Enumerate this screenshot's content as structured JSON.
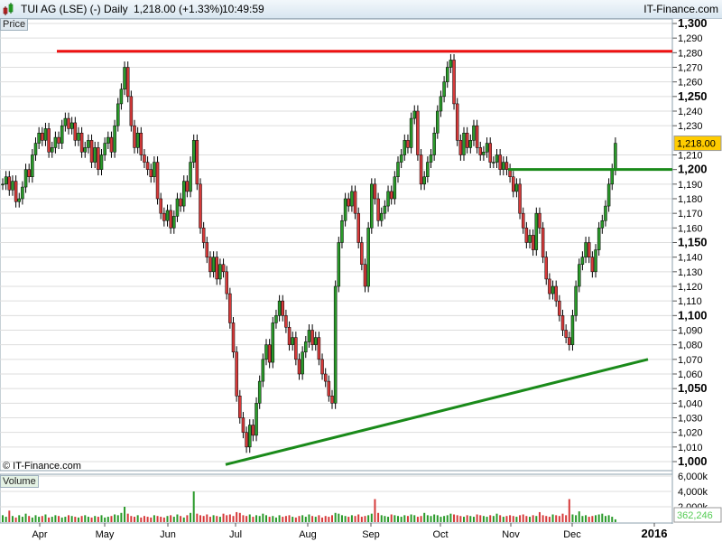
{
  "header": {
    "symbol": "TUI AG (LSE) (-)",
    "interval": "Daily",
    "price": "1,218.00 (+1.33%)",
    "time": "10:49:59",
    "site": "IT-Finance.com"
  },
  "panels": {
    "price_label": "Price",
    "volume_label": "Volume",
    "watermark": "© IT-Finance.com"
  },
  "colors": {
    "up": "#2a9a2a",
    "down": "#d63a3a",
    "resistance": "#ee1111",
    "support": "#1a8a1a",
    "last_price_bg": "#ffcc00"
  },
  "chart_data": [
    {
      "type": "candlestick",
      "title": "TUI AG (LSE) (-)",
      "ylabel": "Price",
      "ylim": [
        1000,
        1300
      ],
      "y_ticks": [
        "1,300",
        "1,290",
        "1,280",
        "1,270",
        "1,260",
        "1,250",
        "1,240",
        "1,230",
        "1,210",
        "1,200",
        "1,190",
        "1,180",
        "1,170",
        "1,160",
        "1,150",
        "1,140",
        "1,130",
        "1,120",
        "1,110",
        "1,100",
        "1,090",
        "1,080",
        "1,070",
        "1,060",
        "1,050",
        "1,040",
        "1,030",
        "1,020",
        "1,010",
        "1,000"
      ],
      "x_ticks": [
        "Apr",
        "May",
        "Jun",
        "Jul",
        "Aug",
        "Sep",
        "Oct",
        "Nov",
        "Dec",
        "2016"
      ],
      "last_price": "1,218.00",
      "closes": [
        1190,
        1195,
        1186,
        1192,
        1178,
        1180,
        1188,
        1200,
        1195,
        1210,
        1218,
        1225,
        1220,
        1228,
        1212,
        1215,
        1222,
        1218,
        1230,
        1235,
        1228,
        1232,
        1220,
        1225,
        1212,
        1215,
        1220,
        1205,
        1215,
        1200,
        1210,
        1218,
        1222,
        1212,
        1230,
        1245,
        1255,
        1270,
        1250,
        1230,
        1215,
        1225,
        1210,
        1205,
        1200,
        1195,
        1205,
        1180,
        1170,
        1165,
        1172,
        1160,
        1168,
        1180,
        1175,
        1192,
        1185,
        1205,
        1220,
        1190,
        1160,
        1150,
        1140,
        1130,
        1140,
        1125,
        1135,
        1130,
        1115,
        1095,
        1075,
        1045,
        1030,
        1020,
        1010,
        1025,
        1018,
        1040,
        1055,
        1070,
        1080,
        1068,
        1095,
        1100,
        1110,
        1100,
        1092,
        1080,
        1085,
        1070,
        1060,
        1075,
        1082,
        1090,
        1080,
        1085,
        1070,
        1060,
        1055,
        1045,
        1040,
        1120,
        1150,
        1165,
        1180,
        1175,
        1185,
        1170,
        1150,
        1135,
        1120,
        1160,
        1190,
        1180,
        1165,
        1170,
        1175,
        1185,
        1180,
        1195,
        1205,
        1210,
        1220,
        1215,
        1235,
        1240,
        1210,
        1190,
        1195,
        1205,
        1210,
        1225,
        1240,
        1250,
        1260,
        1270,
        1275,
        1245,
        1220,
        1210,
        1225,
        1215,
        1220,
        1230,
        1215,
        1210,
        1212,
        1218,
        1205,
        1205,
        1210,
        1200,
        1205,
        1200,
        1195,
        1185,
        1190,
        1170,
        1160,
        1150,
        1155,
        1145,
        1170,
        1160,
        1140,
        1125,
        1115,
        1120,
        1110,
        1100,
        1090,
        1085,
        1080,
        1100,
        1120,
        1135,
        1140,
        1150,
        1140,
        1130,
        1145,
        1160,
        1165,
        1175,
        1190,
        1200,
        1218
      ],
      "lines": [
        {
          "kind": "resistance",
          "price": 1281
        },
        {
          "kind": "support",
          "price": 1200
        },
        {
          "kind": "trendline",
          "from_price": 998,
          "to_price": 1070
        }
      ]
    },
    {
      "type": "bar",
      "ylabel": "Volume",
      "y_ticks": [
        "6,000k",
        "4,000k",
        "2,000k"
      ],
      "last_volume": "362,246",
      "volumes_k": [
        900,
        700,
        1500,
        800,
        600,
        900,
        700,
        1100,
        800,
        600,
        900,
        700,
        800,
        1000,
        600,
        700,
        900,
        800,
        600,
        700,
        900,
        800,
        700,
        600,
        800,
        900,
        700,
        600,
        800,
        700,
        900,
        600,
        700,
        800,
        1000,
        900,
        1200,
        2000,
        1100,
        800,
        700,
        900,
        600,
        800,
        700,
        600,
        900,
        800,
        700,
        600,
        800,
        900,
        700,
        1000,
        800,
        600,
        900,
        1200,
        4000,
        1100,
        900,
        800,
        1000,
        700,
        900,
        800,
        700,
        1100,
        900,
        1000,
        800,
        1300,
        1200,
        900,
        800,
        1000,
        700,
        900,
        800,
        1100,
        900,
        700,
        800,
        600,
        900,
        700,
        800,
        900,
        700,
        600,
        800,
        900,
        700,
        1000,
        800,
        700,
        900,
        600,
        800,
        700,
        900,
        1200,
        1100,
        900,
        800,
        700,
        900,
        800,
        1000,
        700,
        800,
        900,
        1100,
        3000,
        1200,
        900,
        800,
        700,
        1000,
        900,
        800,
        700,
        900,
        800,
        1000,
        900,
        700,
        800,
        1200,
        900,
        800,
        1000,
        900,
        700,
        800,
        900,
        1100,
        1000,
        900,
        800,
        700,
        900,
        800,
        700,
        1000,
        900,
        800,
        700,
        900,
        800,
        1100,
        900,
        700,
        800,
        900,
        800,
        700,
        900,
        1000,
        800,
        700,
        900,
        800,
        1300,
        900,
        800,
        700,
        1000,
        900,
        800,
        1100,
        900,
        3000,
        1000,
        900,
        1400,
        800,
        900,
        700,
        800,
        900,
        1000,
        1100,
        800,
        900,
        700,
        362
      ]
    }
  ]
}
